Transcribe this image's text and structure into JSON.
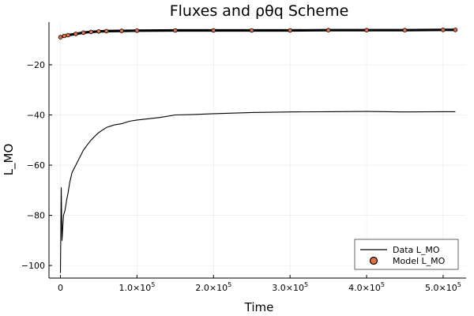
{
  "chart_data": {
    "type": "line",
    "title": "Fluxes and ρθq Scheme",
    "xlabel": "Time",
    "ylabel": "L_MO",
    "xlim": [
      -15000,
      530000
    ],
    "ylim": [
      -105,
      -3
    ],
    "grid": true,
    "legend_position": "bottom-right",
    "x_ticks": [
      0,
      100000,
      200000,
      300000,
      400000,
      500000
    ],
    "x_tick_labels": [
      {
        "mantissa": "0",
        "exp": ""
      },
      {
        "mantissa": "1.0×10",
        "exp": "5"
      },
      {
        "mantissa": "2.0×10",
        "exp": "5"
      },
      {
        "mantissa": "3.0×10",
        "exp": "5"
      },
      {
        "mantissa": "4.0×10",
        "exp": "5"
      },
      {
        "mantissa": "5.0×10",
        "exp": "5"
      }
    ],
    "y_ticks": [
      -100,
      -80,
      -60,
      -40,
      -20
    ],
    "y_tick_labels": [
      "−100",
      "−80",
      "−60",
      "−40",
      "−20"
    ],
    "series": [
      {
        "name": "Data L_MO",
        "kind": "line",
        "color": "#000000",
        "x": [
          0,
          1000,
          2000,
          3000,
          4000,
          6000,
          8000,
          10000,
          12000,
          15000,
          20000,
          25000,
          30000,
          35000,
          40000,
          45000,
          50000,
          55000,
          60000,
          70000,
          80000,
          90000,
          100000,
          115000,
          130000,
          150000,
          175000,
          200000,
          250000,
          300000,
          350000,
          400000,
          450000,
          500000,
          516000
        ],
        "y": [
          -103,
          -69,
          -90,
          -85,
          -80,
          -78,
          -74,
          -71,
          -67,
          -63,
          -60,
          -57,
          -54,
          -52,
          -50,
          -48.5,
          -47,
          -46,
          -45,
          -44,
          -43.5,
          -42.5,
          -42,
          -41.5,
          -41,
          -40,
          -39.8,
          -39.5,
          -39,
          -38.8,
          -38.7,
          -38.6,
          -38.8,
          -38.7,
          -38.7
        ]
      },
      {
        "name": "Model L_MO",
        "kind": "scatter",
        "color": "#e26f46",
        "edge_color": "#000000",
        "x": [
          0,
          5000,
          10000,
          20000,
          30000,
          40000,
          50000,
          60000,
          80000,
          100000,
          150000,
          200000,
          250000,
          300000,
          350000,
          400000,
          450000,
          500000,
          516000
        ],
        "y": [
          -9,
          -8.5,
          -8.2,
          -7.7,
          -7.2,
          -6.9,
          -6.7,
          -6.6,
          -6.5,
          -6.4,
          -6.3,
          -6.3,
          -6.3,
          -6.3,
          -6.2,
          -6.2,
          -6.2,
          -6.1,
          -6.1
        ]
      }
    ]
  }
}
